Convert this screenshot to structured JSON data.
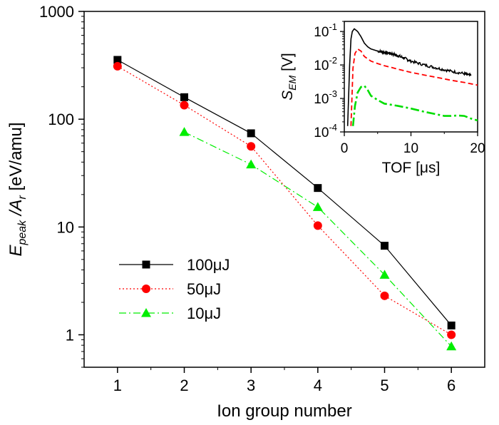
{
  "chart_data": [
    {
      "type": "line",
      "xlabel": "Ion group number",
      "ylabel": {
        "main": "E",
        "sub1": "peak",
        "mid": " /A",
        "sub2": "r",
        "unit": " [eV/amu]"
      },
      "yscale": "log",
      "xlim": [
        0.5,
        6.5
      ],
      "ylim": [
        0.5,
        1000
      ],
      "xticks": [
        1,
        2,
        3,
        4,
        5,
        6
      ],
      "xtick_labels": [
        "1",
        "2",
        "3",
        "4",
        "5",
        "6"
      ],
      "yticks": [
        1,
        10,
        100,
        1000
      ],
      "ytick_labels": [
        "1",
        "10",
        "100",
        "1000"
      ],
      "legend_position": "lower-left",
      "series": [
        {
          "name": "100μJ",
          "color": "#000000",
          "marker": "square",
          "line": "solid",
          "x": [
            1,
            2,
            3,
            4,
            5,
            6
          ],
          "values": [
            355,
            160,
            74,
            23,
            6.7,
            1.22
          ]
        },
        {
          "name": "50μJ",
          "color": "#ff0000",
          "marker": "circle",
          "line": "dotted",
          "x": [
            1,
            2,
            3,
            4,
            5,
            6
          ],
          "values": [
            310,
            135,
            56,
            10.3,
            2.3,
            1.0
          ]
        },
        {
          "name": "10μJ",
          "color": "#00ee00",
          "marker": "triangle",
          "line": "dashdot",
          "x": [
            2,
            3,
            4,
            5,
            6
          ],
          "values": [
            76,
            38,
            15.3,
            3.6,
            0.78
          ]
        }
      ]
    },
    {
      "type": "line",
      "role": "inset",
      "xlabel": "TOF [μs]",
      "ylabel": {
        "main": "S",
        "sub": "EM",
        "unit": " [V]"
      },
      "yscale": "log",
      "xlim": [
        0,
        20
      ],
      "ylim": [
        0.0001,
        0.2
      ],
      "xticks": [
        0,
        10,
        20
      ],
      "xtick_labels": [
        "0",
        "10",
        "20"
      ],
      "yticks": [
        0.0001,
        0.001,
        0.01,
        0.1
      ],
      "ytick_labels": [
        {
          "base": "10",
          "exp": "-4"
        },
        {
          "base": "10",
          "exp": "-3"
        },
        {
          "base": "10",
          "exp": "-2"
        },
        {
          "base": "10",
          "exp": "-1"
        }
      ],
      "series": [
        {
          "name": "100μJ",
          "color": "#000000",
          "line": "solid",
          "noisy": true,
          "x": [
            0.5,
            0.8,
            1.0,
            1.2,
            1.5,
            2.0,
            2.5,
            3.0,
            3.5,
            4.0,
            5.0,
            6.0,
            7.0,
            8.0,
            9.0,
            10.0,
            12.0,
            14.0,
            16.0,
            18.0,
            19.0
          ],
          "values": [
            0.00015,
            0.01,
            0.06,
            0.1,
            0.12,
            0.1,
            0.07,
            0.045,
            0.035,
            0.03,
            0.026,
            0.024,
            0.022,
            0.019,
            0.016,
            0.013,
            0.01,
            0.008,
            0.0065,
            0.0055,
            0.0048
          ]
        },
        {
          "name": "50μJ",
          "color": "#ff0000",
          "line": "dashed",
          "x": [
            1.0,
            1.3,
            1.6,
            2.0,
            2.5,
            3.0,
            4.0,
            5.0,
            6.0,
            7.0,
            8.0,
            10.0,
            12.0,
            14.0,
            16.0,
            18.0,
            20.0
          ],
          "values": [
            0.00015,
            0.008,
            0.022,
            0.03,
            0.026,
            0.018,
            0.013,
            0.011,
            0.0095,
            0.0085,
            0.0075,
            0.006,
            0.005,
            0.0042,
            0.0035,
            0.003,
            0.0025
          ]
        },
        {
          "name": "10μJ",
          "color": "#00dd00",
          "line": "dashdot",
          "x": [
            1.3,
            1.6,
            2.0,
            2.5,
            3.0,
            3.5,
            4.0,
            5.0,
            6.0,
            7.0,
            8.0,
            9.0,
            10.0,
            12.0,
            14.0,
            15.0,
            16.0,
            17.0,
            18.0,
            19.0,
            20.0
          ],
          "values": [
            0.00015,
            0.0006,
            0.0015,
            0.0022,
            0.0024,
            0.0018,
            0.0012,
            0.0009,
            0.0007,
            0.00065,
            0.0006,
            0.00055,
            0.0005,
            0.0004,
            0.00033,
            0.0003,
            0.0003,
            0.00031,
            0.0003,
            0.00025,
            0.00022
          ]
        }
      ]
    }
  ]
}
